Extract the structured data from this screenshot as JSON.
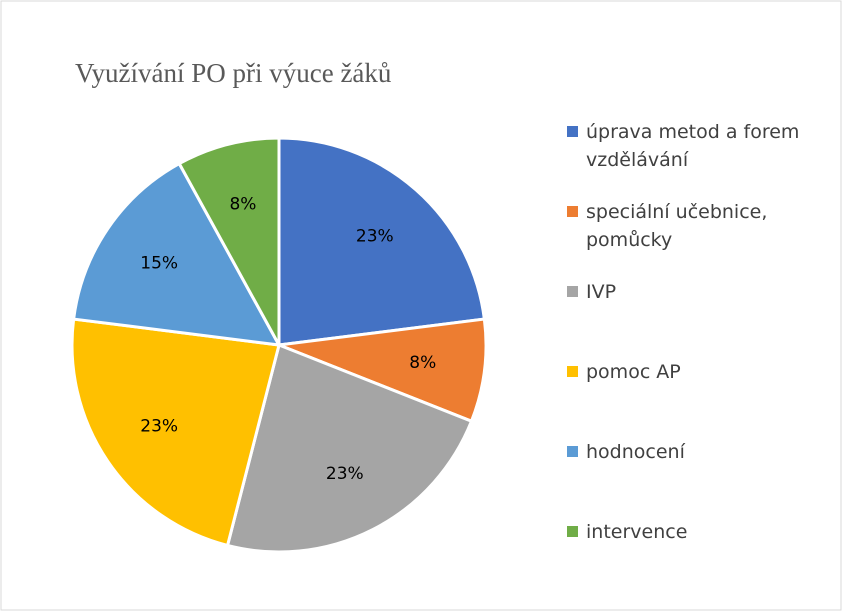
{
  "chart_data": {
    "type": "pie",
    "title": "Využívání PO při výuce žáků",
    "categories": [
      "úprava metod a forem vzdělávání",
      "speciální učebnice, pomůcky",
      "IVP",
      "pomoc AP",
      "hodnocení",
      "intervence"
    ],
    "values": [
      23,
      8,
      23,
      23,
      15,
      8
    ],
    "value_labels": [
      "23%",
      "8%",
      "23%",
      "23%",
      "15%",
      "8%"
    ],
    "colors": [
      "#4472c4",
      "#ed7d31",
      "#a5a5a5",
      "#ffc000",
      "#5b9bd5",
      "#70ad47"
    ],
    "legend": "right"
  }
}
